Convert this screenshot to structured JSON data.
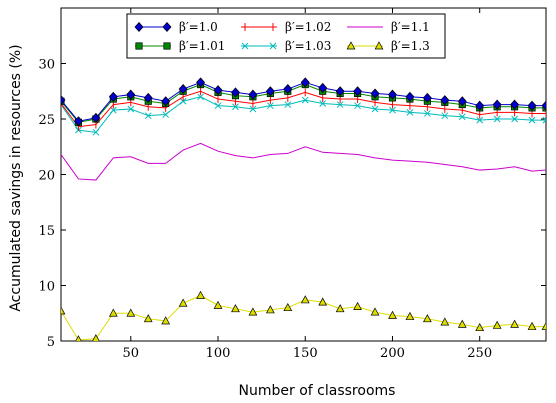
{
  "chart_data": {
    "type": "line",
    "xlabel": "Number of classrooms",
    "ylabel": "Accumulated savings in resources (%)",
    "xlim": [
      10,
      288
    ],
    "ylim": [
      5,
      35
    ],
    "xticks": [
      "50",
      "100",
      "150",
      "200",
      "250"
    ],
    "yticks": [
      "5",
      "10",
      "15",
      "20",
      "25",
      "30"
    ],
    "grid": false,
    "legend_position": "top-center",
    "x": [
      10,
      20,
      30,
      40,
      50,
      60,
      70,
      80,
      90,
      100,
      110,
      120,
      130,
      140,
      150,
      160,
      170,
      180,
      190,
      200,
      210,
      220,
      230,
      240,
      250,
      260,
      270,
      280,
      288
    ],
    "series": [
      {
        "name": "β′=1.0",
        "color": "#0000cc",
        "marker": "diamond",
        "values": [
          26.7,
          24.8,
          25.1,
          27.0,
          27.2,
          26.9,
          26.6,
          27.7,
          28.3,
          27.6,
          27.4,
          27.2,
          27.5,
          27.7,
          28.3,
          27.8,
          27.5,
          27.5,
          27.3,
          27.2,
          27.0,
          26.9,
          26.7,
          26.6,
          26.2,
          26.3,
          26.3,
          26.2,
          26.2
        ]
      },
      {
        "name": "β′=1.01",
        "color": "#008800",
        "marker": "square",
        "values": [
          26.6,
          24.7,
          25.0,
          26.8,
          27.0,
          26.6,
          26.4,
          27.5,
          28.1,
          27.4,
          27.1,
          27.0,
          27.3,
          27.5,
          28.1,
          27.5,
          27.3,
          27.3,
          27.0,
          26.9,
          26.8,
          26.6,
          26.5,
          26.3,
          26.0,
          26.1,
          26.1,
          26.0,
          26.0
        ]
      },
      {
        "name": "β′=1.02",
        "color": "#ff0000",
        "marker": "vline",
        "values": [
          26.4,
          24.3,
          24.5,
          26.3,
          26.5,
          26.1,
          26.0,
          27.0,
          27.5,
          26.8,
          26.6,
          26.4,
          26.7,
          26.9,
          27.4,
          26.9,
          26.8,
          26.8,
          26.5,
          26.3,
          26.2,
          26.1,
          25.9,
          25.8,
          25.4,
          25.6,
          25.6,
          25.5,
          25.5
        ]
      },
      {
        "name": "β′=1.03",
        "color": "#00bbbb",
        "marker": "x",
        "values": [
          26.3,
          24.0,
          23.8,
          25.8,
          25.9,
          25.3,
          25.4,
          26.6,
          27.0,
          26.2,
          26.1,
          25.9,
          26.2,
          26.3,
          26.7,
          26.4,
          26.3,
          26.2,
          25.9,
          25.8,
          25.6,
          25.5,
          25.3,
          25.2,
          24.9,
          25.0,
          25.0,
          24.9,
          24.9
        ]
      },
      {
        "name": "β′=1.1",
        "color": "#cc00cc",
        "marker": "none",
        "values": [
          21.8,
          19.6,
          19.5,
          21.5,
          21.6,
          21.0,
          21.0,
          22.2,
          22.8,
          22.1,
          21.7,
          21.5,
          21.8,
          21.9,
          22.5,
          22.0,
          21.9,
          21.8,
          21.5,
          21.3,
          21.2,
          21.1,
          20.9,
          20.7,
          20.4,
          20.5,
          20.7,
          20.3,
          20.4
        ]
      },
      {
        "name": "β′=1.3",
        "color": "#dddd00",
        "marker": "triangle",
        "values": [
          7.7,
          5.1,
          5.2,
          7.5,
          7.5,
          7.0,
          6.8,
          8.4,
          9.1,
          8.2,
          7.9,
          7.6,
          7.8,
          8.0,
          8.7,
          8.5,
          7.9,
          8.1,
          7.6,
          7.3,
          7.2,
          7.0,
          6.7,
          6.5,
          6.2,
          6.4,
          6.5,
          6.3,
          6.3
        ]
      }
    ]
  }
}
